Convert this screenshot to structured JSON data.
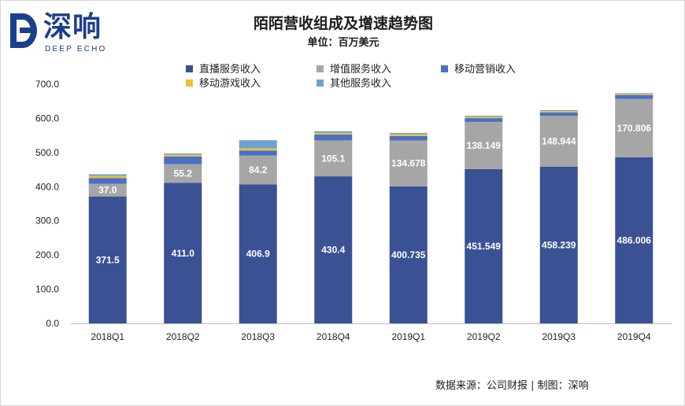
{
  "logo": {
    "cn": "深响",
    "en": "DEEP ECHO"
  },
  "source": "数据来源：公司财报 | 制图：深响",
  "colors": {
    "direct": "#3a5294",
    "value_added": "#a6a6a6",
    "marketing": "#4a6fc4",
    "games": "#f2c12e",
    "other": "#6ea2d2"
  },
  "chart_data": {
    "type": "bar",
    "stacked": true,
    "title": "陌陌营收组成及增速趋势图",
    "subtitle": "单位：百万美元",
    "categories": [
      "2018Q1",
      "2018Q2",
      "2018Q3",
      "2018Q4",
      "2019Q1",
      "2019Q2",
      "2019Q3",
      "2019Q4"
    ],
    "ylim": [
      0,
      700
    ],
    "yticks": [
      "0.0",
      "100.0",
      "200.0",
      "300.0",
      "400.0",
      "500.0",
      "600.0",
      "700.0"
    ],
    "legend_position": "top",
    "series": [
      {
        "name": "直播服务收入",
        "color": "#3a5294",
        "values": [
          371.5,
          411.0,
          406.9,
          430.4,
          400.735,
          451.549,
          458.239,
          486.006
        ],
        "labels": [
          "371.5",
          "411.0",
          "406.9",
          "430.4",
          "400.735",
          "451.549",
          "458.239",
          "486.006"
        ]
      },
      {
        "name": "增值服务收入",
        "color": "#a6a6a6",
        "values": [
          37.0,
          55.2,
          84.2,
          105.1,
          134.678,
          138.149,
          148.944,
          170.806
        ],
        "labels": [
          "37.0",
          "55.2",
          "84.2",
          "105.1",
          "134.678",
          "138.149",
          "148.944",
          "170.806"
        ]
      },
      {
        "name": "移动营销收入",
        "color": "#4a6fc4",
        "values": [
          17,
          22,
          15,
          17,
          13,
          11,
          10,
          11
        ]
      },
      {
        "name": "移动游戏收入",
        "color": "#f2c12e",
        "values": [
          6,
          5,
          6,
          5,
          5,
          4,
          4,
          3
        ]
      },
      {
        "name": "其他服务收入",
        "color": "#6ea2d2",
        "values": [
          5,
          4,
          24,
          5,
          4,
          3,
          3,
          3
        ]
      }
    ]
  }
}
